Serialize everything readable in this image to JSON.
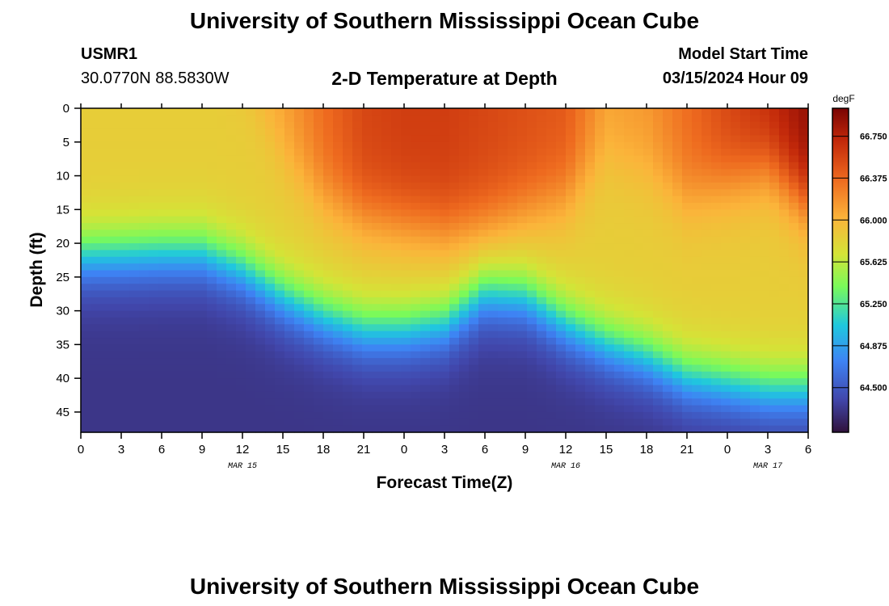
{
  "header": {
    "title": "University of Southern Mississippi Ocean Cube",
    "station_id": "USMR1",
    "coords": "30.0770N  88.5830W",
    "plot_title": "2-D Temperature at Depth",
    "model_start_label": "Model Start Time",
    "model_start_value": "03/15/2024 Hour 09",
    "footer_title": "University of Southern Mississippi Ocean Cube"
  },
  "chart_data": {
    "type": "heatmap",
    "title": "2-D Temperature at Depth",
    "xlabel": "Forecast Time(Z)",
    "ylabel": "Depth (ft)",
    "x_tick_labels": [
      "0",
      "3",
      "6",
      "9",
      "12",
      "15",
      "18",
      "21",
      "0",
      "3",
      "6",
      "9",
      "12",
      "15",
      "18",
      "21",
      "0",
      "3",
      "6"
    ],
    "x_range_hours": [
      0,
      54
    ],
    "date_labels": [
      {
        "label": "MAR 15",
        "hour": 12
      },
      {
        "label": "MAR 16",
        "hour": 36
      },
      {
        "label": "MAR 17",
        "hour": 51
      }
    ],
    "y_ticks": [
      0,
      5,
      10,
      15,
      20,
      25,
      30,
      35,
      40,
      45
    ],
    "y_tick_labels": [
      "0",
      "5",
      "10",
      "15",
      "20",
      "25",
      "30",
      "35",
      "40",
      "45"
    ],
    "ylim": [
      48,
      0
    ],
    "colorbar": {
      "unit": "degF",
      "range": [
        64.1,
        67.0
      ],
      "ticks": [
        64.5,
        64.875,
        65.25,
        65.625,
        66.0,
        66.375,
        66.75
      ],
      "tick_labels": [
        "64.500",
        "64.875",
        "65.250",
        "65.625",
        "66.000",
        "66.375",
        "66.750"
      ]
    },
    "thermocline_depth_ft": {
      "hours": [
        0,
        6,
        9,
        12,
        15,
        18,
        21,
        24,
        27,
        30,
        33,
        36,
        39,
        42,
        45,
        48,
        51,
        54
      ],
      "depth": [
        22,
        21.5,
        21.5,
        24,
        28,
        31,
        33,
        33,
        32,
        27.5,
        28,
        32,
        35,
        37,
        40,
        41,
        42,
        42
      ]
    },
    "warm_layer_depth_ft": {
      "hours": [
        0,
        6,
        9,
        12,
        15,
        18,
        21,
        24,
        27,
        30,
        33,
        36,
        39,
        42,
        45,
        48,
        51,
        54
      ],
      "depth": [
        -5,
        -5,
        -5,
        -3,
        7,
        13,
        16,
        17,
        18,
        17,
        15,
        13,
        7,
        9,
        13,
        11,
        9,
        14
      ]
    },
    "surface_temperature_degF": {
      "hours": [
        0,
        6,
        9,
        12,
        15,
        18,
        21,
        24,
        27,
        30,
        33,
        36,
        39,
        42,
        45,
        48,
        51,
        54
      ],
      "value": [
        65.6,
        65.75,
        65.82,
        65.95,
        66.1,
        66.35,
        66.55,
        66.6,
        66.6,
        66.55,
        66.5,
        66.45,
        66.1,
        66.15,
        66.35,
        66.55,
        66.7,
        66.9
      ]
    }
  }
}
